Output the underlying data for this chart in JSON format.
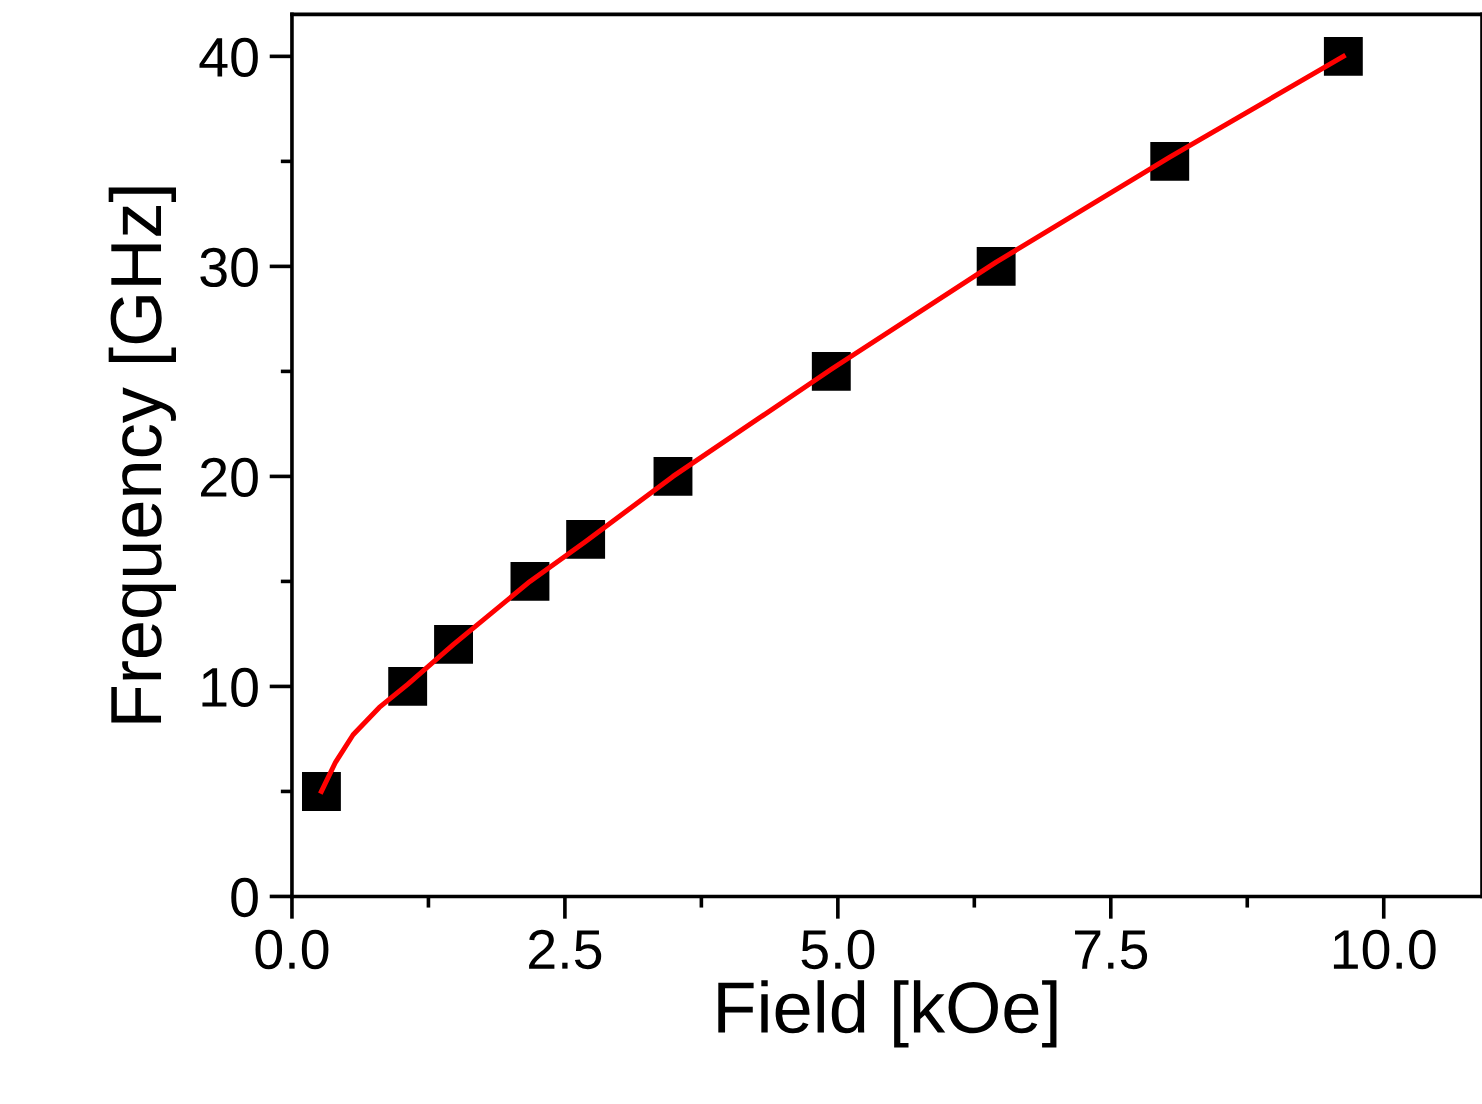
{
  "chart_data": {
    "type": "scatter",
    "xlabel": "Field [kOe]",
    "ylabel": "Frequency [GHz]",
    "series": [
      {
        "color": "#000000",
        "marker": "square",
        "x": [
          0.27,
          1.06,
          1.48,
          2.18,
          2.69,
          3.49,
          4.94,
          6.45,
          8.04,
          9.63
        ],
        "values": [
          5,
          10,
          12,
          15,
          17,
          20,
          25,
          30,
          35,
          40
        ]
      },
      {
        "type": "line",
        "color": "#ff0000",
        "marker": "none",
        "x": [
          0.27,
          0.4,
          0.56,
          0.8,
          1.06,
          1.48,
          2.18,
          2.69,
          3.49,
          4.94,
          6.45,
          8.04,
          9.63
        ],
        "values": [
          5,
          6.4,
          7.7,
          9.0,
          10.1,
          12.0,
          15.0,
          16.9,
          20.0,
          25.1,
          30.2,
          35.2,
          40.0
        ]
      }
    ],
    "xlim": [
      0,
      10.9
    ],
    "ylim": [
      0,
      42
    ],
    "xticks": [
      {
        "value": 0,
        "label": "0.0"
      },
      {
        "value": 1.25,
        "label": null
      },
      {
        "value": 2.5,
        "label": "2.5"
      },
      {
        "value": 3.75,
        "label": null
      },
      {
        "value": 5,
        "label": "5.0"
      },
      {
        "value": 6.25,
        "label": null
      },
      {
        "value": 7.5,
        "label": "7.5"
      },
      {
        "value": 8.75,
        "label": null
      },
      {
        "value": 10,
        "label": "10.0"
      }
    ],
    "yticks": [
      0,
      {
        "value": 5,
        "label": null
      },
      10,
      {
        "value": 15,
        "label": null
      },
      20,
      {
        "value": 25,
        "label": null
      },
      30,
      {
        "value": 35,
        "label": null
      },
      40
    ],
    "grid": false,
    "legend": false
  }
}
